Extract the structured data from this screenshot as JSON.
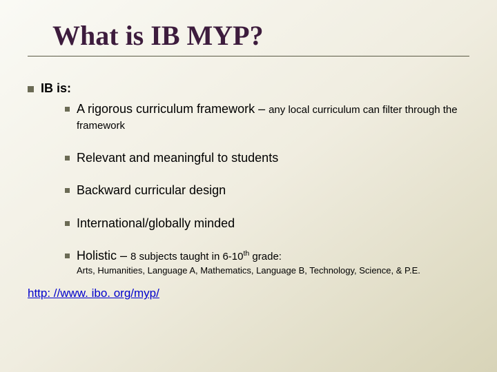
{
  "colors": {
    "title": "#3d1c3d",
    "bullet": "#6b6b55",
    "link": "#0000cc",
    "bg_start": "#fafaf5",
    "bg_end": "#d8d4b8",
    "text": "#000000"
  },
  "title": "What is IB MYP?",
  "lvl1_label": "IB is:",
  "items": [
    {
      "main": "A rigorous curriculum framework – ",
      "sub": "any local curriculum can filter through the framework"
    },
    {
      "main": "Relevant and meaningful to students"
    },
    {
      "main": "Backward curricular design"
    },
    {
      "main": "International/globally minded"
    },
    {
      "main": "Holistic – ",
      "sub": "8 subjects taught in 6-10",
      "sup": "th",
      "sub2": " grade:",
      "detail": "Arts, Humanities, Language A, Mathematics, Language B, Technology, Science, & P.E."
    }
  ],
  "link_text": "http: //www. ibo. org/myp/"
}
